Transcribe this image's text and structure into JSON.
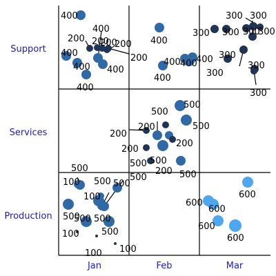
{
  "chart_data": {
    "type": "scatter",
    "title": "",
    "x_categories": [
      "Jan",
      "Feb",
      "Mar"
    ],
    "y_categories": [
      "Support",
      "Services",
      "Production"
    ],
    "colors": {
      "dark": "#1f3553",
      "mid": "#2f6aa6",
      "light": "#4ea6ef"
    },
    "points": [
      {
        "x": "Jan",
        "y": "Support",
        "value": 400,
        "label": "400"
      },
      {
        "x": "Jan",
        "y": "Support",
        "value": 400,
        "label": "400"
      },
      {
        "x": "Jan",
        "y": "Support",
        "value": 400,
        "label": "400"
      },
      {
        "x": "Jan",
        "y": "Support",
        "value": 400,
        "label": "400"
      },
      {
        "x": "Jan",
        "y": "Support",
        "value": 400,
        "label": "400"
      },
      {
        "x": "Jan",
        "y": "Support",
        "value": 400,
        "label": "400"
      },
      {
        "x": "Jan",
        "y": "Support",
        "value": 200,
        "label": "200"
      },
      {
        "x": "Jan",
        "y": "Support",
        "value": 200,
        "label": "200"
      },
      {
        "x": "Jan",
        "y": "Support",
        "value": 200,
        "label": "200"
      },
      {
        "x": "Jan",
        "y": "Support",
        "value": 200,
        "label": "200"
      },
      {
        "x": "Jan",
        "y": "Support",
        "value": 200,
        "label": "200"
      },
      {
        "x": "Feb",
        "y": "Support",
        "value": 400,
        "label": "400"
      },
      {
        "x": "Feb",
        "y": "Support",
        "value": 400,
        "label": "400"
      },
      {
        "x": "Feb",
        "y": "Support",
        "value": 400,
        "label": "400"
      },
      {
        "x": "Feb",
        "y": "Support",
        "value": 400,
        "label": "400"
      },
      {
        "x": "Feb",
        "y": "Support",
        "value": 400,
        "label": "400"
      },
      {
        "x": "Mar",
        "y": "Support",
        "value": 300,
        "label": "300"
      },
      {
        "x": "Mar",
        "y": "Support",
        "value": 300,
        "label": "300"
      },
      {
        "x": "Mar",
        "y": "Support",
        "value": 300,
        "label": "300"
      },
      {
        "x": "Mar",
        "y": "Support",
        "value": 300,
        "label": "300"
      },
      {
        "x": "Mar",
        "y": "Support",
        "value": 300,
        "label": "300"
      },
      {
        "x": "Mar",
        "y": "Support",
        "value": 300,
        "label": "300"
      },
      {
        "x": "Mar",
        "y": "Support",
        "value": 300,
        "label": "300"
      },
      {
        "x": "Mar",
        "y": "Support",
        "value": 300,
        "label": "300"
      },
      {
        "x": "Mar",
        "y": "Support",
        "value": 300,
        "label": "300"
      },
      {
        "x": "Mar",
        "y": "Support",
        "value": 300,
        "label": "300"
      },
      {
        "x": "Jan",
        "y": "Services",
        "value": 200,
        "label": "200"
      },
      {
        "x": "Feb",
        "y": "Services",
        "value": 500,
        "label": "500"
      },
      {
        "x": "Feb",
        "y": "Services",
        "value": 500,
        "label": "500"
      },
      {
        "x": "Feb",
        "y": "Services",
        "value": 500,
        "label": "500"
      },
      {
        "x": "Feb",
        "y": "Services",
        "value": 500,
        "label": "500"
      },
      {
        "x": "Feb",
        "y": "Services",
        "value": 500,
        "label": "500"
      },
      {
        "x": "Feb",
        "y": "Services",
        "value": 500,
        "label": "500"
      },
      {
        "x": "Feb",
        "y": "Services",
        "value": 200,
        "label": "200"
      },
      {
        "x": "Feb",
        "y": "Services",
        "value": 200,
        "label": "200"
      },
      {
        "x": "Feb",
        "y": "Services",
        "value": 200,
        "label": "200"
      },
      {
        "x": "Feb",
        "y": "Services",
        "value": 200,
        "label": "200"
      },
      {
        "x": "Jan",
        "y": "Production",
        "value": 500,
        "label": "500"
      },
      {
        "x": "Jan",
        "y": "Production",
        "value": 500,
        "label": "500"
      },
      {
        "x": "Jan",
        "y": "Production",
        "value": 500,
        "label": "500"
      },
      {
        "x": "Jan",
        "y": "Production",
        "value": 500,
        "label": "500"
      },
      {
        "x": "Jan",
        "y": "Production",
        "value": 500,
        "label": "500"
      },
      {
        "x": "Jan",
        "y": "Production",
        "value": 500,
        "label": "500"
      },
      {
        "x": "Jan",
        "y": "Production",
        "value": 500,
        "label": "500"
      },
      {
        "x": "Jan",
        "y": "Production",
        "value": 500,
        "label": "500"
      },
      {
        "x": "Jan",
        "y": "Production",
        "value": 100,
        "label": "100"
      },
      {
        "x": "Jan",
        "y": "Production",
        "value": 100,
        "label": "100"
      },
      {
        "x": "Jan",
        "y": "Production",
        "value": 100,
        "label": "100"
      },
      {
        "x": "Jan",
        "y": "Production",
        "value": 100,
        "label": "100"
      },
      {
        "x": "Jan",
        "y": "Production",
        "value": 100,
        "label": "100"
      },
      {
        "x": "Mar",
        "y": "Production",
        "value": 600,
        "label": "600"
      },
      {
        "x": "Mar",
        "y": "Production",
        "value": 600,
        "label": "600"
      },
      {
        "x": "Mar",
        "y": "Production",
        "value": 600,
        "label": "600"
      },
      {
        "x": "Mar",
        "y": "Production",
        "value": 600,
        "label": "600"
      },
      {
        "x": "Mar",
        "y": "Production",
        "value": 600,
        "label": "600"
      }
    ]
  }
}
